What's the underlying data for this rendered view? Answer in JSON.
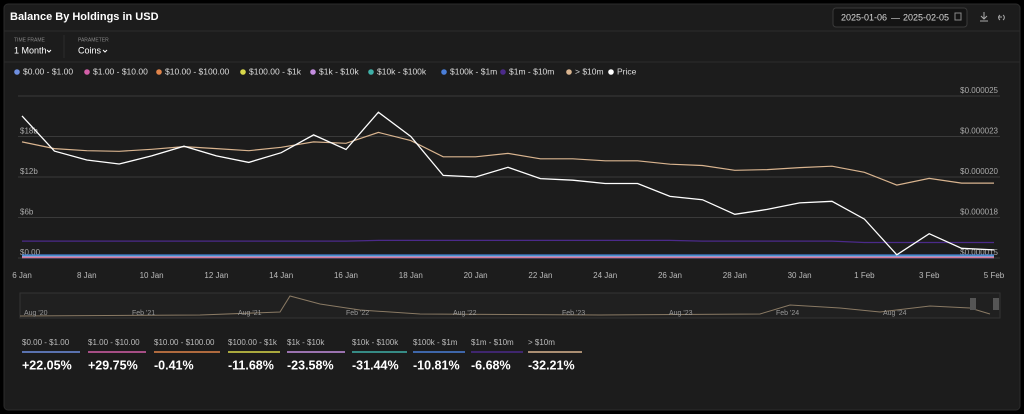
{
  "header": {
    "title": "Balance By Holdings in USD",
    "date_from": "2025-01-06",
    "date_sep": "—",
    "date_to": "2025-02-05"
  },
  "controls": [
    {
      "caption": "TIME FRAME",
      "value": "1 Month"
    },
    {
      "caption": "PARAMETER",
      "value": "Coins"
    }
  ],
  "chart_data": {
    "type": "line",
    "categories": [
      "6 Jan",
      null,
      "8 Jan",
      null,
      "10 Jan",
      null,
      "12 Jan",
      null,
      "14 Jan",
      null,
      "16 Jan",
      null,
      "18 Jan",
      null,
      "20 Jan",
      null,
      "22 Jan",
      null,
      "24 Jan",
      null,
      "26 Jan",
      null,
      "28 Jan",
      null,
      "30 Jan",
      null,
      "1 Feb",
      null,
      "3 Feb",
      null,
      "5 Feb"
    ],
    "ylim": [
      0,
      24000000000
    ],
    "yticks": [
      {
        "value": 0,
        "label": "$0.00"
      },
      {
        "value": 6000000000,
        "label": "$6b"
      },
      {
        "value": 12000000000,
        "label": "$12b"
      },
      {
        "value": 18000000000,
        "label": "$18b"
      }
    ],
    "y2lim": [
      1.5e-05,
      2.5e-05
    ],
    "y2ticks": [
      {
        "value": 1.5e-05,
        "label": "$0.000015"
      },
      {
        "value": 1.75e-05,
        "label": "$0.000018"
      },
      {
        "value": 2e-05,
        "label": "$0.000020"
      },
      {
        "value": 2.25e-05,
        "label": "$0.000023"
      },
      {
        "value": 2.5e-05,
        "label": "$0.000025"
      }
    ],
    "grid": true,
    "series": [
      {
        "name": "$0.00 - $1.00",
        "color": "#6f8fe0",
        "values": [
          50000000,
          50000000,
          50000000,
          50000000,
          50000000,
          50000000,
          50000000,
          50000000,
          50000000,
          50000000,
          50000000,
          50000000,
          50000000,
          50000000,
          50000000,
          50000000,
          50000000,
          50000000,
          50000000,
          50000000,
          50000000,
          50000000,
          50000000,
          50000000,
          50000000,
          50000000,
          50000000,
          50000000,
          50000000,
          50000000,
          50000000
        ]
      },
      {
        "name": "$1.00 - $10.00",
        "color": "#d35fa8",
        "values": [
          80000000,
          80000000,
          80000000,
          80000000,
          80000000,
          80000000,
          80000000,
          80000000,
          80000000,
          80000000,
          80000000,
          80000000,
          80000000,
          80000000,
          80000000,
          80000000,
          80000000,
          80000000,
          80000000,
          80000000,
          80000000,
          80000000,
          80000000,
          80000000,
          80000000,
          80000000,
          80000000,
          80000000,
          80000000,
          80000000,
          80000000
        ]
      },
      {
        "name": "$10.00 - $100.00",
        "color": "#e0844a",
        "values": [
          150000000,
          150000000,
          150000000,
          150000000,
          150000000,
          150000000,
          150000000,
          150000000,
          150000000,
          150000000,
          150000000,
          150000000,
          150000000,
          150000000,
          150000000,
          150000000,
          150000000,
          150000000,
          150000000,
          150000000,
          150000000,
          150000000,
          150000000,
          150000000,
          150000000,
          150000000,
          150000000,
          150000000,
          150000000,
          150000000,
          150000000
        ]
      },
      {
        "name": "$100.00 - $1k",
        "color": "#d9d84a",
        "values": [
          300000000,
          300000000,
          300000000,
          300000000,
          300000000,
          300000000,
          300000000,
          300000000,
          300000000,
          300000000,
          300000000,
          300000000,
          300000000,
          300000000,
          300000000,
          300000000,
          300000000,
          300000000,
          300000000,
          300000000,
          300000000,
          300000000,
          300000000,
          300000000,
          300000000,
          300000000,
          300000000,
          300000000,
          300000000,
          300000000,
          300000000
        ]
      },
      {
        "name": "$1k - $10k",
        "color": "#c48ee0",
        "values": [
          200000000,
          200000000,
          200000000,
          200000000,
          200000000,
          200000000,
          200000000,
          200000000,
          200000000,
          200000000,
          200000000,
          200000000,
          200000000,
          200000000,
          200000000,
          200000000,
          200000000,
          200000000,
          200000000,
          200000000,
          200000000,
          200000000,
          200000000,
          200000000,
          200000000,
          200000000,
          200000000,
          200000000,
          200000000,
          200000000,
          200000000
        ]
      },
      {
        "name": "$10k - $100k",
        "color": "#3fb0a8",
        "values": [
          350000000,
          350000000,
          350000000,
          350000000,
          350000000,
          350000000,
          350000000,
          350000000,
          350000000,
          350000000,
          350000000,
          350000000,
          350000000,
          350000000,
          350000000,
          350000000,
          350000000,
          350000000,
          350000000,
          350000000,
          350000000,
          350000000,
          350000000,
          350000000,
          350000000,
          350000000,
          350000000,
          350000000,
          350000000,
          350000000,
          350000000
        ]
      },
      {
        "name": "$100k - $1m",
        "color": "#4a7ed8",
        "values": [
          450000000,
          450000000,
          450000000,
          450000000,
          450000000,
          450000000,
          450000000,
          450000000,
          450000000,
          450000000,
          450000000,
          450000000,
          450000000,
          450000000,
          450000000,
          450000000,
          450000000,
          450000000,
          450000000,
          450000000,
          450000000,
          450000000,
          450000000,
          450000000,
          450000000,
          450000000,
          450000000,
          450000000,
          450000000,
          450000000,
          450000000
        ]
      },
      {
        "name": "$1m - $10m",
        "color": "#4b2a8a",
        "values": [
          2500000000,
          2500000000,
          2500000000,
          2500000000,
          2500000000,
          2500000000,
          2500000000,
          2500000000,
          2500000000,
          2500000000,
          2500000000,
          2600000000,
          2600000000,
          2600000000,
          2600000000,
          2600000000,
          2600000000,
          2600000000,
          2600000000,
          2600000000,
          2600000000,
          2500000000,
          2500000000,
          2500000000,
          2500000000,
          2500000000,
          2300000000,
          2300000000,
          2300000000,
          2300000000,
          2300000000
        ]
      },
      {
        "name": "> $10m",
        "color": "#d9b48f",
        "values": [
          17200000000,
          16200000000,
          15900000000,
          15800000000,
          16100000000,
          16500000000,
          16200000000,
          15900000000,
          16400000000,
          17200000000,
          17000000000,
          18600000000,
          17400000000,
          15000000000,
          15000000000,
          15500000000,
          14700000000,
          14700000000,
          14400000000,
          14400000000,
          13900000000,
          13700000000,
          13000000000,
          13100000000,
          13400000000,
          13600000000,
          12700000000,
          10800000000,
          11800000000,
          11100000000,
          11100000000
        ]
      },
      {
        "name": "Price",
        "color": "#ffffff",
        "axis": "y2",
        "values": [
          2.377e-05,
          2.16e-05,
          2.105e-05,
          2.08e-05,
          2.13e-05,
          2.19e-05,
          2.13e-05,
          2.09e-05,
          2.15e-05,
          2.26e-05,
          2.17e-05,
          2.4e-05,
          2.25e-05,
          2.01e-05,
          2e-05,
          2.06e-05,
          1.99e-05,
          1.98e-05,
          1.96e-05,
          1.96e-05,
          1.88e-05,
          1.86e-05,
          1.77e-05,
          1.8e-05,
          1.84e-05,
          1.85e-05,
          1.74e-05,
          1.52e-05,
          1.65e-05,
          1.56e-05,
          1.55e-05
        ]
      }
    ]
  },
  "navigator": {
    "labels": [
      "Aug '20",
      "Feb '21",
      "Aug '21",
      "Feb '22",
      "Aug '22",
      "Feb '23",
      "Aug '23",
      "Feb '24",
      "Aug '24"
    ]
  },
  "summary": [
    {
      "label": "$0.00 - $1.00",
      "change": "+22.05%"
    },
    {
      "label": "$1.00 - $10.00",
      "change": "+29.75%"
    },
    {
      "label": "$10.00 - $100.00",
      "change": "-0.41%"
    },
    {
      "label": "$100.00 - $1k",
      "change": "-11.68%"
    },
    {
      "label": "$1k - $10k",
      "change": "-23.58%"
    },
    {
      "label": "$10k - $100k",
      "change": "-31.44%"
    },
    {
      "label": "$100k - $1m",
      "change": "-10.81%"
    },
    {
      "label": "$1m - $10m",
      "change": "-6.68%"
    },
    {
      "label": "> $10m",
      "change": "-32.21%"
    }
  ]
}
